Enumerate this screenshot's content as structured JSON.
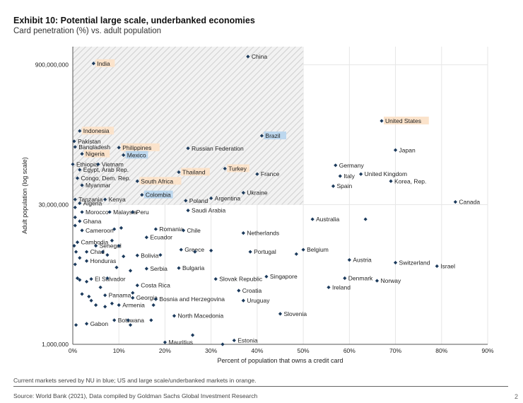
{
  "title": "Exhibit 10: Potential large scale, underbanked economies",
  "subtitle": "Card penetration (%) vs. adult population",
  "note": "Current markets served by NU in blue; US and large scale/underbanked markets in orange.",
  "source": "Source: World Bank (2021), Data compiled by Goldman Sachs Global Investment Research",
  "page_number": "2",
  "colors": {
    "point": "#1b3a5c",
    "highlight_blue": "#bcd7ee",
    "highlight_orange": "#fbe3cb",
    "shaded_zone": "#d9d9d9",
    "grid": "#e6e6e6"
  },
  "chart_data": {
    "type": "scatter",
    "xlabel": "Percent of population that owns a credit card",
    "ylabel": "Adult population (log scale)",
    "x_ticks": [
      "0%",
      "10%",
      "20%",
      "30%",
      "40%",
      "50%",
      "60%",
      "70%",
      "80%",
      "90%"
    ],
    "y_ticks": [
      "1,000,000",
      "30,000,000",
      "900,000,000"
    ],
    "xlim": [
      0,
      90
    ],
    "ylim": [
      1000000,
      1400000000
    ],
    "shaded_region": {
      "x_max": 50,
      "y_min": 30000000
    },
    "points": [
      {
        "name": "China",
        "x": 38,
        "y": 1100000000
      },
      {
        "name": "India",
        "x": 4.5,
        "y": 930000000,
        "highlight": "orange"
      },
      {
        "name": "United States",
        "x": 67,
        "y": 230000000,
        "highlight": "orange"
      },
      {
        "name": "Indonesia",
        "x": 1.5,
        "y": 180000000,
        "highlight": "orange"
      },
      {
        "name": "Brazil",
        "x": 41,
        "y": 160000000,
        "highlight": "blue"
      },
      {
        "name": "Pakistan",
        "x": 0.3,
        "y": 140000000
      },
      {
        "name": "Philippines",
        "x": 10,
        "y": 120000000,
        "highlight": "orange"
      },
      {
        "name": "Bangladesh",
        "x": 0.5,
        "y": 122000000
      },
      {
        "name": "Russian Federation",
        "x": 25,
        "y": 118000000
      },
      {
        "name": "Japan",
        "x": 70,
        "y": 113000000
      },
      {
        "name": "Nigeria",
        "x": 2,
        "y": 103000000,
        "highlight": "orange"
      },
      {
        "name": "Mexico",
        "x": 11,
        "y": 100000000,
        "highlight": "blue"
      },
      {
        "name": "Ethiopia",
        "x": 0,
        "y": 80000000
      },
      {
        "name": "Vietnam",
        "x": 5.5,
        "y": 80000000
      },
      {
        "name": "Germany",
        "x": 57,
        "y": 78000000
      },
      {
        "name": "Turkey",
        "x": 33,
        "y": 72000000,
        "highlight": "orange"
      },
      {
        "name": "Egypt, Arab Rep.",
        "x": 1.5,
        "y": 70000000
      },
      {
        "name": "Thailand",
        "x": 23,
        "y": 66000000,
        "highlight": "orange"
      },
      {
        "name": "United Kingdom",
        "x": 62.5,
        "y": 63000000
      },
      {
        "name": "Italy",
        "x": 58,
        "y": 60000000
      },
      {
        "name": "France",
        "x": 40,
        "y": 63000000
      },
      {
        "name": "Congo, Dem. Rep.",
        "x": 1,
        "y": 57000000
      },
      {
        "name": "South Africa",
        "x": 14,
        "y": 53000000,
        "highlight": "orange"
      },
      {
        "name": "Korea, Rep.",
        "x": 69,
        "y": 53000000
      },
      {
        "name": "Myanmar",
        "x": 2,
        "y": 48000000
      },
      {
        "name": "Spain",
        "x": 56.5,
        "y": 47000000
      },
      {
        "name": "Ukraine",
        "x": 37,
        "y": 40000000
      },
      {
        "name": "Colombia",
        "x": 15,
        "y": 38000000,
        "highlight": "blue"
      },
      {
        "name": "Tanzania",
        "x": 0.5,
        "y": 34000000
      },
      {
        "name": "Kenya",
        "x": 7,
        "y": 34000000
      },
      {
        "name": "Argentina",
        "x": 30,
        "y": 35000000
      },
      {
        "name": "Poland",
        "x": 24.5,
        "y": 33000000
      },
      {
        "name": "Canada",
        "x": 83,
        "y": 32000000
      },
      {
        "name": "Algeria",
        "x": 1.5,
        "y": 31000000
      },
      {
        "name": "Saudi Arabia",
        "x": 25,
        "y": 26000000
      },
      {
        "name": "Morocco",
        "x": 2,
        "y": 25000000
      },
      {
        "name": "Malaysia",
        "x": 8,
        "y": 25000000
      },
      {
        "name": "Peru",
        "x": 13,
        "y": 25000000
      },
      {
        "name": "Australia",
        "x": 52,
        "y": 21000000
      },
      {
        "name": "Ghana",
        "x": 1.5,
        "y": 20000000
      },
      {
        "name": "Romania",
        "x": 18,
        "y": 16500000
      },
      {
        "name": "Chile",
        "x": 24,
        "y": 16000000
      },
      {
        "name": "Cameroon",
        "x": 2,
        "y": 16000000
      },
      {
        "name": "Netherlands",
        "x": 37,
        "y": 15000000
      },
      {
        "name": "Ecuador",
        "x": 16,
        "y": 13500000
      },
      {
        "name": "Cambodia",
        "x": 1,
        "y": 12000000
      },
      {
        "name": "Senegal",
        "x": 5,
        "y": 11000000
      },
      {
        "name": "Belgium",
        "x": 50,
        "y": 10000000
      },
      {
        "name": "Greece",
        "x": 23.5,
        "y": 10000000
      },
      {
        "name": "Portugal",
        "x": 38.5,
        "y": 9500000
      },
      {
        "name": "Chad",
        "x": 3,
        "y": 9500000
      },
      {
        "name": "Bolivia",
        "x": 14,
        "y": 8700000
      },
      {
        "name": "Honduras",
        "x": 3,
        "y": 7600000
      },
      {
        "name": "Austria",
        "x": 60,
        "y": 7800000
      },
      {
        "name": "Switzerland",
        "x": 70,
        "y": 7300000
      },
      {
        "name": "Israel",
        "x": 79,
        "y": 6700000
      },
      {
        "name": "Serbia",
        "x": 16,
        "y": 6300000
      },
      {
        "name": "Bulgaria",
        "x": 23,
        "y": 6400000
      },
      {
        "name": "Singapore",
        "x": 42,
        "y": 5200000
      },
      {
        "name": "Slovak Republic",
        "x": 31,
        "y": 4900000
      },
      {
        "name": "El Salvador",
        "x": 4,
        "y": 4900000
      },
      {
        "name": "Denmark",
        "x": 59,
        "y": 5000000
      },
      {
        "name": "Norway",
        "x": 66,
        "y": 4700000
      },
      {
        "name": "Costa Rica",
        "x": 14,
        "y": 4200000
      },
      {
        "name": "Ireland",
        "x": 55.5,
        "y": 4000000
      },
      {
        "name": "Croatia",
        "x": 36,
        "y": 3700000
      },
      {
        "name": "Panama",
        "x": 7,
        "y": 3300000
      },
      {
        "name": "Georgia",
        "x": 13,
        "y": 3100000
      },
      {
        "name": "Bosnia and Herzegovina",
        "x": 18,
        "y": 3000000
      },
      {
        "name": "Uruguay",
        "x": 37,
        "y": 2900000
      },
      {
        "name": "Armenia",
        "x": 10,
        "y": 2600000
      },
      {
        "name": "Slovenia",
        "x": 45,
        "y": 2100000
      },
      {
        "name": "North Macedonia",
        "x": 22,
        "y": 2000000
      },
      {
        "name": "Botswana",
        "x": 9,
        "y": 1800000
      },
      {
        "name": "Gabon",
        "x": 3,
        "y": 1650000
      },
      {
        "name": "Estonia",
        "x": 35,
        "y": 1100000
      },
      {
        "name": "Mauritius",
        "x": 20,
        "y": 1050000
      },
      {
        "name": "",
        "x": 63.5,
        "y": 21000000
      },
      {
        "name": "",
        "x": 48.5,
        "y": 9000000
      },
      {
        "name": "",
        "x": 26.5,
        "y": 9500000
      },
      {
        "name": "",
        "x": 30,
        "y": 9800000
      },
      {
        "name": "",
        "x": 19,
        "y": 8800000
      },
      {
        "name": "",
        "x": 0.5,
        "y": 22000000
      },
      {
        "name": "",
        "x": 0.5,
        "y": 18000000
      },
      {
        "name": "",
        "x": 0.3,
        "y": 11000000
      },
      {
        "name": "",
        "x": 0.7,
        "y": 9500000
      },
      {
        "name": "",
        "x": 1.5,
        "y": 8200000
      },
      {
        "name": "",
        "x": 0.5,
        "y": 7000000
      },
      {
        "name": "",
        "x": 9,
        "y": 16500000
      },
      {
        "name": "",
        "x": 10.5,
        "y": 17000000
      },
      {
        "name": "",
        "x": 8.5,
        "y": 12500000
      },
      {
        "name": "",
        "x": 10,
        "y": 11000000
      },
      {
        "name": "",
        "x": 6.5,
        "y": 9500000
      },
      {
        "name": "",
        "x": 7.5,
        "y": 8800000
      },
      {
        "name": "",
        "x": 11,
        "y": 8500000
      },
      {
        "name": "",
        "x": 9.5,
        "y": 6500000
      },
      {
        "name": "",
        "x": 12.5,
        "y": 6000000
      },
      {
        "name": "",
        "x": 1,
        "y": 5000000
      },
      {
        "name": "",
        "x": 1.5,
        "y": 4800000
      },
      {
        "name": "",
        "x": 3,
        "y": 4600000
      },
      {
        "name": "",
        "x": 6,
        "y": 4000000
      },
      {
        "name": "",
        "x": 7.5,
        "y": 5000000
      },
      {
        "name": "",
        "x": 2,
        "y": 3400000
      },
      {
        "name": "",
        "x": 3.5,
        "y": 3200000
      },
      {
        "name": "",
        "x": 4,
        "y": 2900000
      },
      {
        "name": "",
        "x": 5,
        "y": 2600000
      },
      {
        "name": "",
        "x": 7,
        "y": 2500000
      },
      {
        "name": "",
        "x": 8.5,
        "y": 2700000
      },
      {
        "name": "",
        "x": 17.5,
        "y": 2600000
      },
      {
        "name": "",
        "x": 12,
        "y": 1800000
      },
      {
        "name": "",
        "x": 12.5,
        "y": 1600000
      },
      {
        "name": "",
        "x": 17,
        "y": 1800000
      },
      {
        "name": "",
        "x": 0.7,
        "y": 1600000
      },
      {
        "name": "",
        "x": 32.5,
        "y": 1000000
      },
      {
        "name": "",
        "x": 26,
        "y": 1250000
      },
      {
        "name": "",
        "x": 13,
        "y": 3500000
      },
      {
        "name": "",
        "x": 0.5,
        "y": 28000000
      }
    ]
  }
}
